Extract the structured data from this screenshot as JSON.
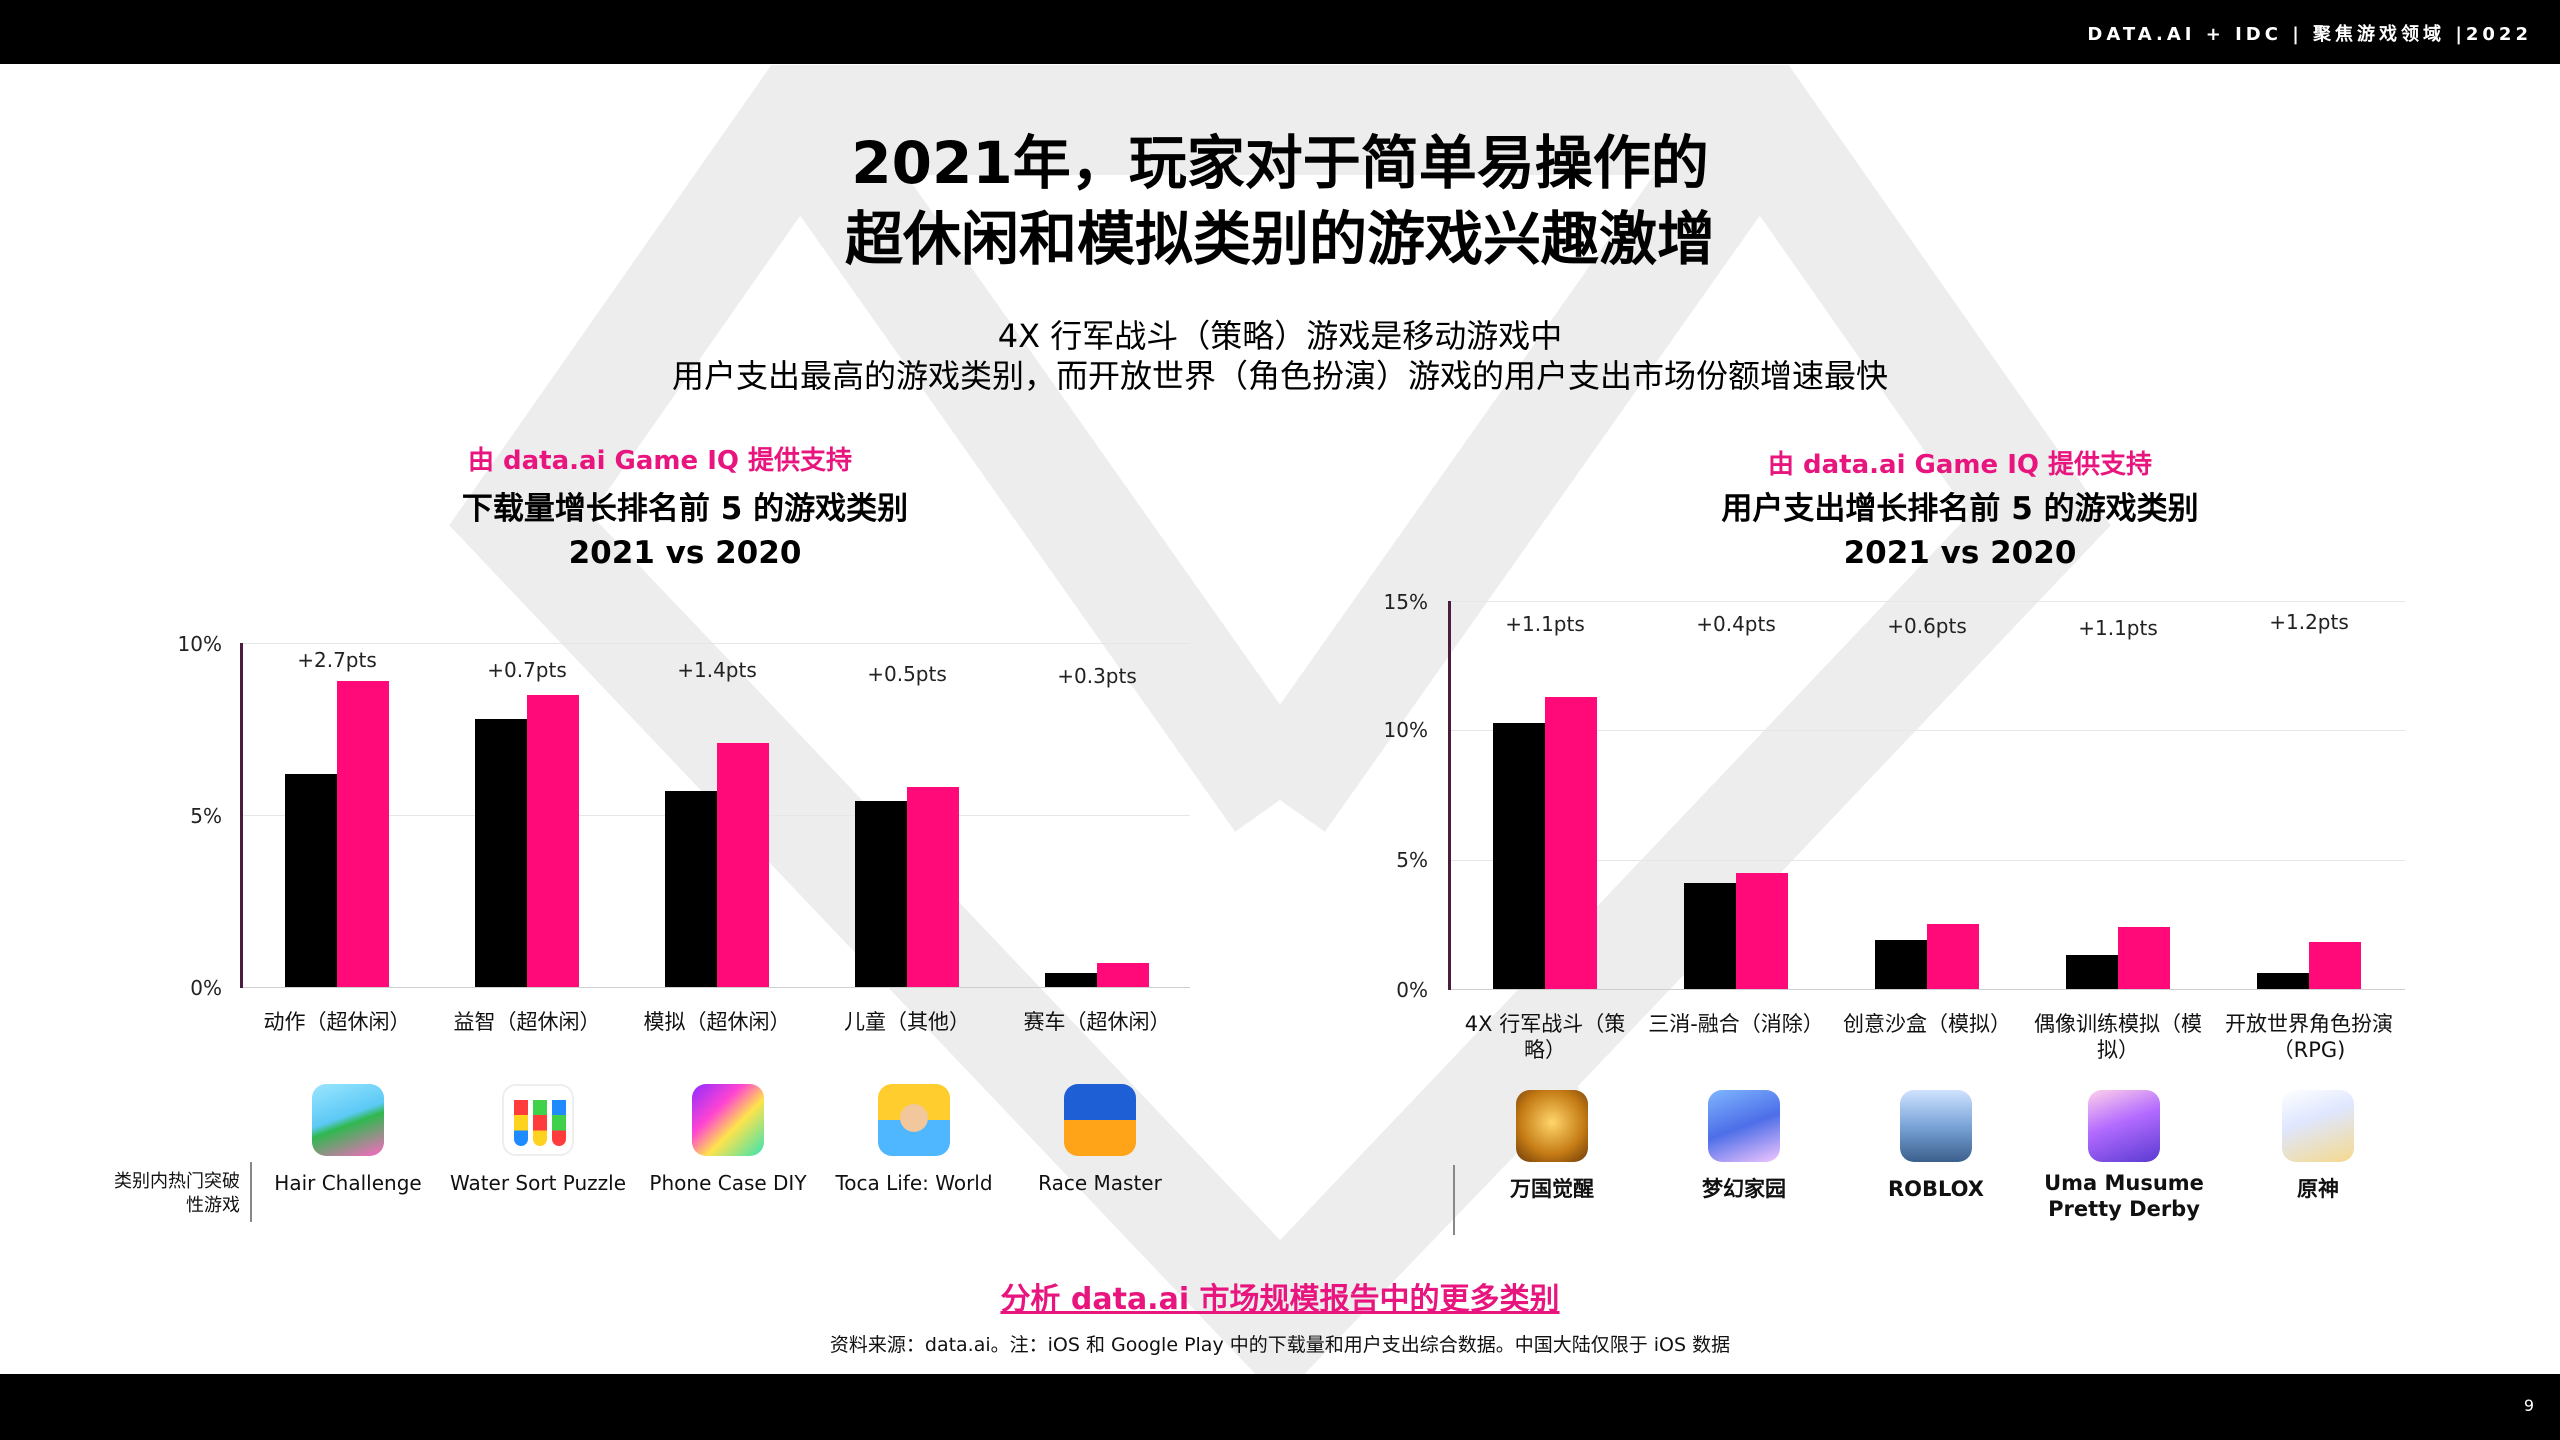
{
  "header": {
    "brand": "DATA.AI + IDC  |  聚焦游戏领域  |2022"
  },
  "footer": {
    "page": "9"
  },
  "title": {
    "line1": "2021年，玩家对于简单易操作的",
    "line2": "超休闲和模拟类别的游戏兴趣激增"
  },
  "subtitle": {
    "line1": "4X 行军战斗（策略）游戏是移动游戏中",
    "line2": "用户支出最高的游戏类别，而开放世界（角色扮演）游戏的用户支出市场份额增速最快"
  },
  "left_panel": {
    "credit": "由 data.ai Game IQ 提供支持",
    "title1": "下载量增长排名前 5 的游戏类别",
    "title2": "2021 vs 2020",
    "y_labels": [
      "10%",
      "5%",
      "0%"
    ],
    "side_label": "类别内热门突破性游戏",
    "apps": [
      {
        "name": "Hair Challenge",
        "icon": "hair-challenge-icon"
      },
      {
        "name": "Water Sort Puzzle",
        "icon": "water-sort-puzzle-icon"
      },
      {
        "name": "Phone Case DIY",
        "icon": "phone-case-diy-icon"
      },
      {
        "name": "Toca Life: World",
        "icon": "toca-life-world-icon"
      },
      {
        "name": "Race Master",
        "icon": "race-master-icon"
      }
    ]
  },
  "right_panel": {
    "credit": "由 data.ai Game IQ 提供支持",
    "title1": "用户支出增长排名前 5 的游戏类别",
    "title2": "2021 vs 2020",
    "y_labels": [
      "15%",
      "10%",
      "5%",
      "0%"
    ],
    "apps": [
      {
        "name": "万国觉醒",
        "icon": "rise-of-kingdoms-icon"
      },
      {
        "name": "梦幻家园",
        "icon": "homescapes-icon"
      },
      {
        "name": "ROBLOX",
        "icon": "roblox-icon"
      },
      {
        "name": "Uma Musume Pretty Derby",
        "icon": "uma-musume-icon"
      },
      {
        "name": "原神",
        "icon": "genshin-impact-icon"
      }
    ]
  },
  "chart_data": [
    {
      "type": "bar",
      "title": "下载量增长排名前 5 的游戏类别 2021 vs 2020",
      "categories": [
        "动作（超休闲）",
        "益智（超休闲）",
        "模拟（超休闲）",
        "儿童（其他）",
        "赛车（超休闲）"
      ],
      "series": [
        {
          "values": [
            6.2,
            7.8,
            5.7,
            5.4,
            0.4
          ],
          "color": "#000000"
        },
        {
          "values": [
            8.9,
            8.5,
            7.1,
            5.8,
            0.7
          ],
          "color": "#ff0a78"
        }
      ],
      "annotations": [
        "+2.7pts",
        "+0.7pts",
        "+1.4pts",
        "+0.5pts",
        "+0.3pts"
      ],
      "ylim": [
        0,
        10
      ],
      "grid": true
    },
    {
      "type": "bar",
      "title": "用户支出增长排名前 5 的游戏类别 2021 vs 2020",
      "categories": [
        "4X 行军战斗（策略）",
        "三消-融合（消除）",
        "创意沙盒（模拟）",
        "偶像训练模拟（模拟）",
        "开放世界角色扮演（RPG)"
      ],
      "series": [
        {
          "values": [
            10.3,
            4.1,
            1.9,
            1.3,
            0.6
          ],
          "color": "#000000"
        },
        {
          "values": [
            11.3,
            4.5,
            2.5,
            2.4,
            1.8
          ],
          "color": "#ff0a78"
        }
      ],
      "annotations": [
        "+1.1pts",
        "+0.4pts",
        "+0.6pts",
        "+1.1pts",
        "+1.2pts"
      ],
      "ylim": [
        0,
        15
      ],
      "grid": true
    }
  ],
  "bottom_link": "分析 data.ai 市场规模报告中的更多类别",
  "source": "资料来源：data.ai。注：iOS 和 Google Play 中的下载量和用户支出综合数据。中国大陆仅限于 iOS 数据"
}
